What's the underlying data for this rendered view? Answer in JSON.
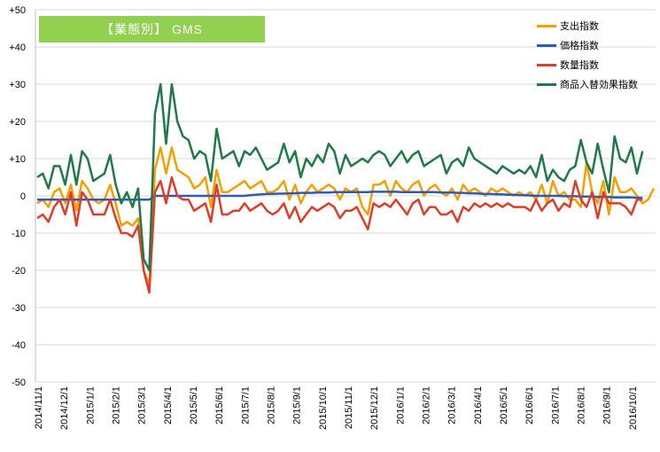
{
  "chart_data": {
    "type": "line",
    "title": "【業態別】 GMS",
    "ylim": [
      -50,
      50
    ],
    "yticks": [
      "+50",
      "+40",
      "+30",
      "+20",
      "+10",
      "0",
      "-10",
      "-20",
      "-30",
      "-40",
      "-50"
    ],
    "grid": true,
    "legend_position": "top-right",
    "x_tick_labels": [
      "2014/11/1",
      "2014/12/1",
      "2015/1/1",
      "2015/2/1",
      "2015/3/1",
      "2015/4/1",
      "2015/5/1",
      "2015/6/1",
      "2015/7/1",
      "2015/8/1",
      "2015/9/1",
      "2015/10/1",
      "2015/11/1",
      "2015/12/1",
      "2016/1/1",
      "2016/2/1",
      "2016/3/1",
      "2016/4/1",
      "2016/5/1",
      "2016/6/1",
      "2016/7/1",
      "2016/8/1",
      "2016/9/1",
      "2016/10/1"
    ],
    "series": [
      {
        "name": "支出指数",
        "color": "#F5A000",
        "values": [
          -2,
          -1,
          -3,
          1,
          2,
          -2,
          3,
          -4,
          4,
          2,
          -1,
          -2,
          -1,
          3,
          -2,
          -8,
          -7,
          -8,
          -6,
          -20,
          -24,
          7,
          13,
          6,
          13,
          7,
          6,
          5,
          2,
          3,
          5,
          -3,
          7,
          1,
          1,
          2,
          3,
          4,
          2,
          3,
          4,
          1,
          1,
          2,
          4,
          -1,
          3,
          -2,
          1,
          3,
          1,
          2,
          3,
          2,
          -1,
          2,
          1,
          2,
          -3,
          -5,
          3,
          3,
          4,
          0,
          4,
          2,
          1,
          3,
          4,
          0,
          2,
          3,
          1,
          0,
          2,
          -1,
          3,
          1,
          2,
          1,
          0,
          2,
          1,
          2,
          1,
          0,
          1,
          0,
          1,
          -1,
          3,
          -2,
          4,
          0,
          1,
          -1,
          -1,
          -3,
          9,
          1,
          -2,
          4,
          -5,
          5,
          1,
          1,
          2,
          0,
          -2,
          -1,
          2
        ]
      },
      {
        "name": "価格指数",
        "color": "#2E59B4",
        "values": [
          -1,
          -1,
          -1,
          -1,
          -1,
          -1,
          -1,
          -1,
          -1,
          -1,
          -1,
          -1,
          -1,
          -1,
          -1,
          -1,
          -1,
          -1,
          -1,
          -1,
          -1,
          0,
          0,
          0,
          0,
          0,
          0,
          0,
          0,
          0,
          0,
          0,
          0,
          0,
          0,
          0,
          0,
          0,
          0.2,
          0.3,
          0.4,
          0.5,
          0.5,
          0.6,
          0.6,
          0.7,
          0.7,
          0.8,
          0.8,
          0.8,
          0.9,
          0.9,
          0.9,
          1,
          1,
          1,
          1,
          1,
          1,
          1,
          1.1,
          1.1,
          1.1,
          1.1,
          1.1,
          1,
          1,
          1,
          1,
          1,
          1,
          1,
          0.9,
          0.9,
          0.9,
          0.8,
          0.8,
          0.7,
          0.7,
          0.6,
          0.5,
          0.5,
          0.4,
          0.4,
          0.3,
          0.3,
          0.2,
          0.2,
          0.1,
          0,
          0,
          0,
          0,
          0,
          -0.1,
          -0.1,
          -0.1,
          -0.2,
          -0.2,
          -0.2,
          -0.3,
          -0.3,
          -0.3,
          -0.4,
          -0.4,
          -0.4,
          -0.4,
          -0.5,
          -0.5
        ]
      },
      {
        "name": "数量指数",
        "color": "#E03C28",
        "values": [
          -6,
          -5,
          -7,
          -3,
          -1,
          -5,
          1,
          -8,
          1,
          -1,
          -5,
          -5,
          -5,
          -1,
          -6,
          -10,
          -10,
          -11,
          -8,
          -20,
          -26,
          1,
          4,
          -2,
          5,
          0,
          -1,
          -1,
          -4,
          -3,
          -2,
          -7,
          3,
          -5,
          -5,
          -4,
          -4,
          -2,
          -4,
          -3,
          -2,
          -4,
          -5,
          -4,
          -2,
          -6,
          -3,
          -7,
          -5,
          -3,
          -4,
          -3,
          -2,
          -3,
          -6,
          -4,
          -4,
          -3,
          -6,
          -9,
          -2,
          -3,
          -2,
          -3,
          -1,
          -3,
          -5,
          -2,
          -1,
          -5,
          -3,
          -3,
          -5,
          -5,
          -4,
          -7,
          -3,
          -4,
          -2,
          -3,
          -2,
          -3,
          -2,
          -3,
          -2,
          -3,
          -3,
          -3,
          -4,
          -1,
          -4,
          -2,
          -1,
          -4,
          -2,
          -3,
          4,
          -1,
          -3,
          1,
          -6,
          1,
          -2,
          -2,
          -2,
          -3,
          -5,
          -1,
          -1
        ]
      },
      {
        "name": "商品入替効果指数",
        "color": "#1E7A46",
        "values": [
          5,
          6,
          2,
          8,
          8,
          3,
          11,
          3,
          12,
          10,
          4,
          5,
          6,
          11,
          3,
          -2,
          1,
          -3,
          2,
          -17,
          -20,
          22,
          30,
          14,
          30,
          20,
          16,
          15,
          10,
          12,
          11,
          4,
          18,
          10,
          11,
          12,
          8,
          12,
          11,
          13,
          10,
          7,
          8,
          9,
          14,
          9,
          12,
          5,
          10,
          8,
          11,
          9,
          14,
          12,
          6,
          11,
          8,
          9,
          10,
          9,
          11,
          12,
          11,
          8,
          10,
          12,
          9,
          11,
          12,
          8,
          9,
          10,
          11,
          6,
          9,
          10,
          8,
          13,
          10,
          9,
          8,
          7,
          6,
          8,
          7,
          6,
          7,
          6,
          8,
          5,
          11,
          4,
          7,
          5,
          4,
          7,
          8,
          15,
          9,
          6,
          14,
          7,
          1,
          16,
          10,
          9,
          13,
          6,
          12
        ]
      }
    ]
  }
}
